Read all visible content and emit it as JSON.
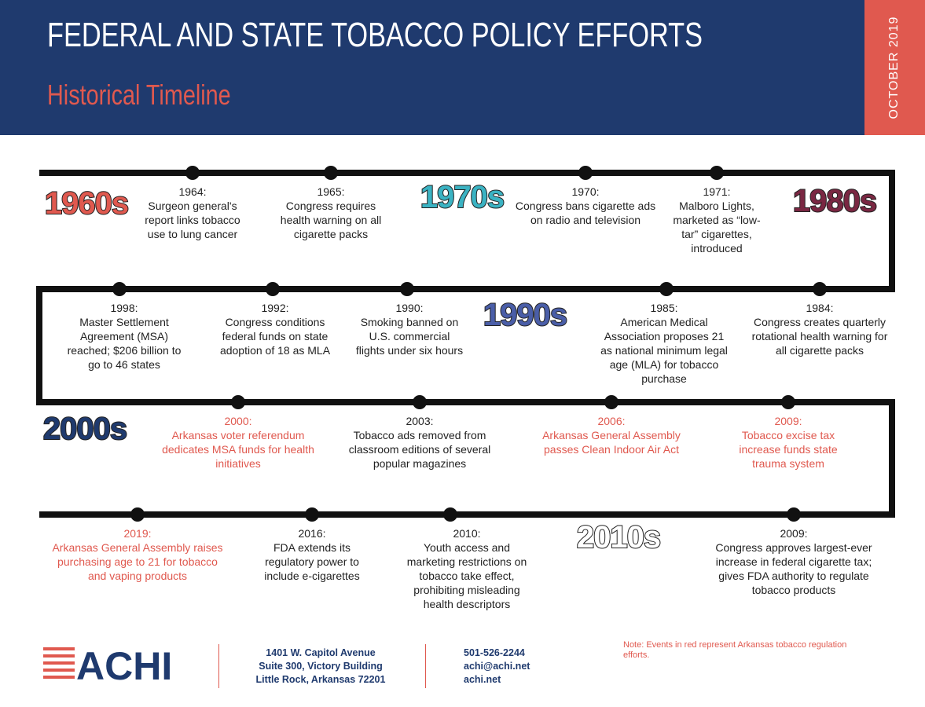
{
  "header": {
    "title": "FEDERAL AND STATE TOBACCO POLICY EFFORTS",
    "subtitle": "Historical Timeline",
    "date": "OCTOBER 2019"
  },
  "decades": [
    {
      "label": "1960s",
      "color": "#e0594f"
    },
    {
      "label": "1970s",
      "color": "#3bb3c3"
    },
    {
      "label": "1980s",
      "color": "#7a2742"
    },
    {
      "label": "1990s",
      "color": "#4a5ea8"
    },
    {
      "label": "2000s",
      "color": "#1f3a6e"
    },
    {
      "label": "2010s",
      "color": "#ffffff"
    }
  ],
  "events": [
    {
      "date": "1964:",
      "text": "Surgeon general's report links tobacco use to lung cancer",
      "color": "#222222"
    },
    {
      "date": "1965:",
      "text": "Congress requires health warning on all cigarette packs",
      "color": "#222222"
    },
    {
      "date": "1970:",
      "text": "Congress bans cigarette ads on radio and television",
      "color": "#222222"
    },
    {
      "date": "1971:",
      "text": "Malboro Lights, marketed as “low-tar” cigarettes, introduced",
      "color": "#222222"
    },
    {
      "date": "1998:",
      "text": "Master Settlement Agreement (MSA) reached; $206 billion to go to 46 states",
      "color": "#222222"
    },
    {
      "date": "1992:",
      "text": "Congress conditions federal funds on state adoption of 18 as MLA",
      "color": "#222222"
    },
    {
      "date": "1990:",
      "text": "Smoking banned on U.S. commercial flights under six hours",
      "color": "#222222"
    },
    {
      "date": "1985:",
      "text": "American Medical Association proposes 21 as national minimum legal age (MLA) for tobacco purchase",
      "color": "#222222"
    },
    {
      "date": "1984:",
      "text": "Congress creates quarterly rotational health warning for all cigarette packs",
      "color": "#222222"
    },
    {
      "date": "2000:",
      "text": "Arkansas voter referendum dedicates MSA funds for health initiatives",
      "color": "#e0594f"
    },
    {
      "date": "2003:",
      "text": "Tobacco ads removed from classroom editions of several popular magazines",
      "color": "#222222"
    },
    {
      "date": "2006:",
      "text": "Arkansas General Assembly passes Clean Indoor Air Act",
      "color": "#e0594f"
    },
    {
      "date": "2009:",
      "text": "Tobacco excise tax increase funds state trauma system",
      "color": "#e0594f"
    },
    {
      "date": "2019:",
      "text": "Arkansas General Assembly raises purchasing age to 21 for tobacco and vaping products",
      "color": "#e0594f"
    },
    {
      "date": "2016:",
      "text": "FDA extends its regulatory power to include e-cigarettes",
      "color": "#222222"
    },
    {
      "date": "2010:",
      "text": "Youth access and marketing restrictions on tobacco take effect, prohibiting misleading health descriptors",
      "color": "#222222"
    },
    {
      "date": "2009:",
      "text": "Congress approves largest-ever increase in federal cigarette tax; gives FDA authority to regulate tobacco products",
      "color": "#222222"
    }
  ],
  "footer": {
    "logo": "ACHI",
    "address": [
      "1401 W. Capitol Avenue",
      "Suite 300, Victory Building",
      "Little Rock, Arkansas 72201"
    ],
    "contact": [
      "501-526-2244",
      "achi@achi.net",
      "achi.net"
    ],
    "note": "Note: Events in red represent Arkansas tobacco regulation efforts."
  }
}
